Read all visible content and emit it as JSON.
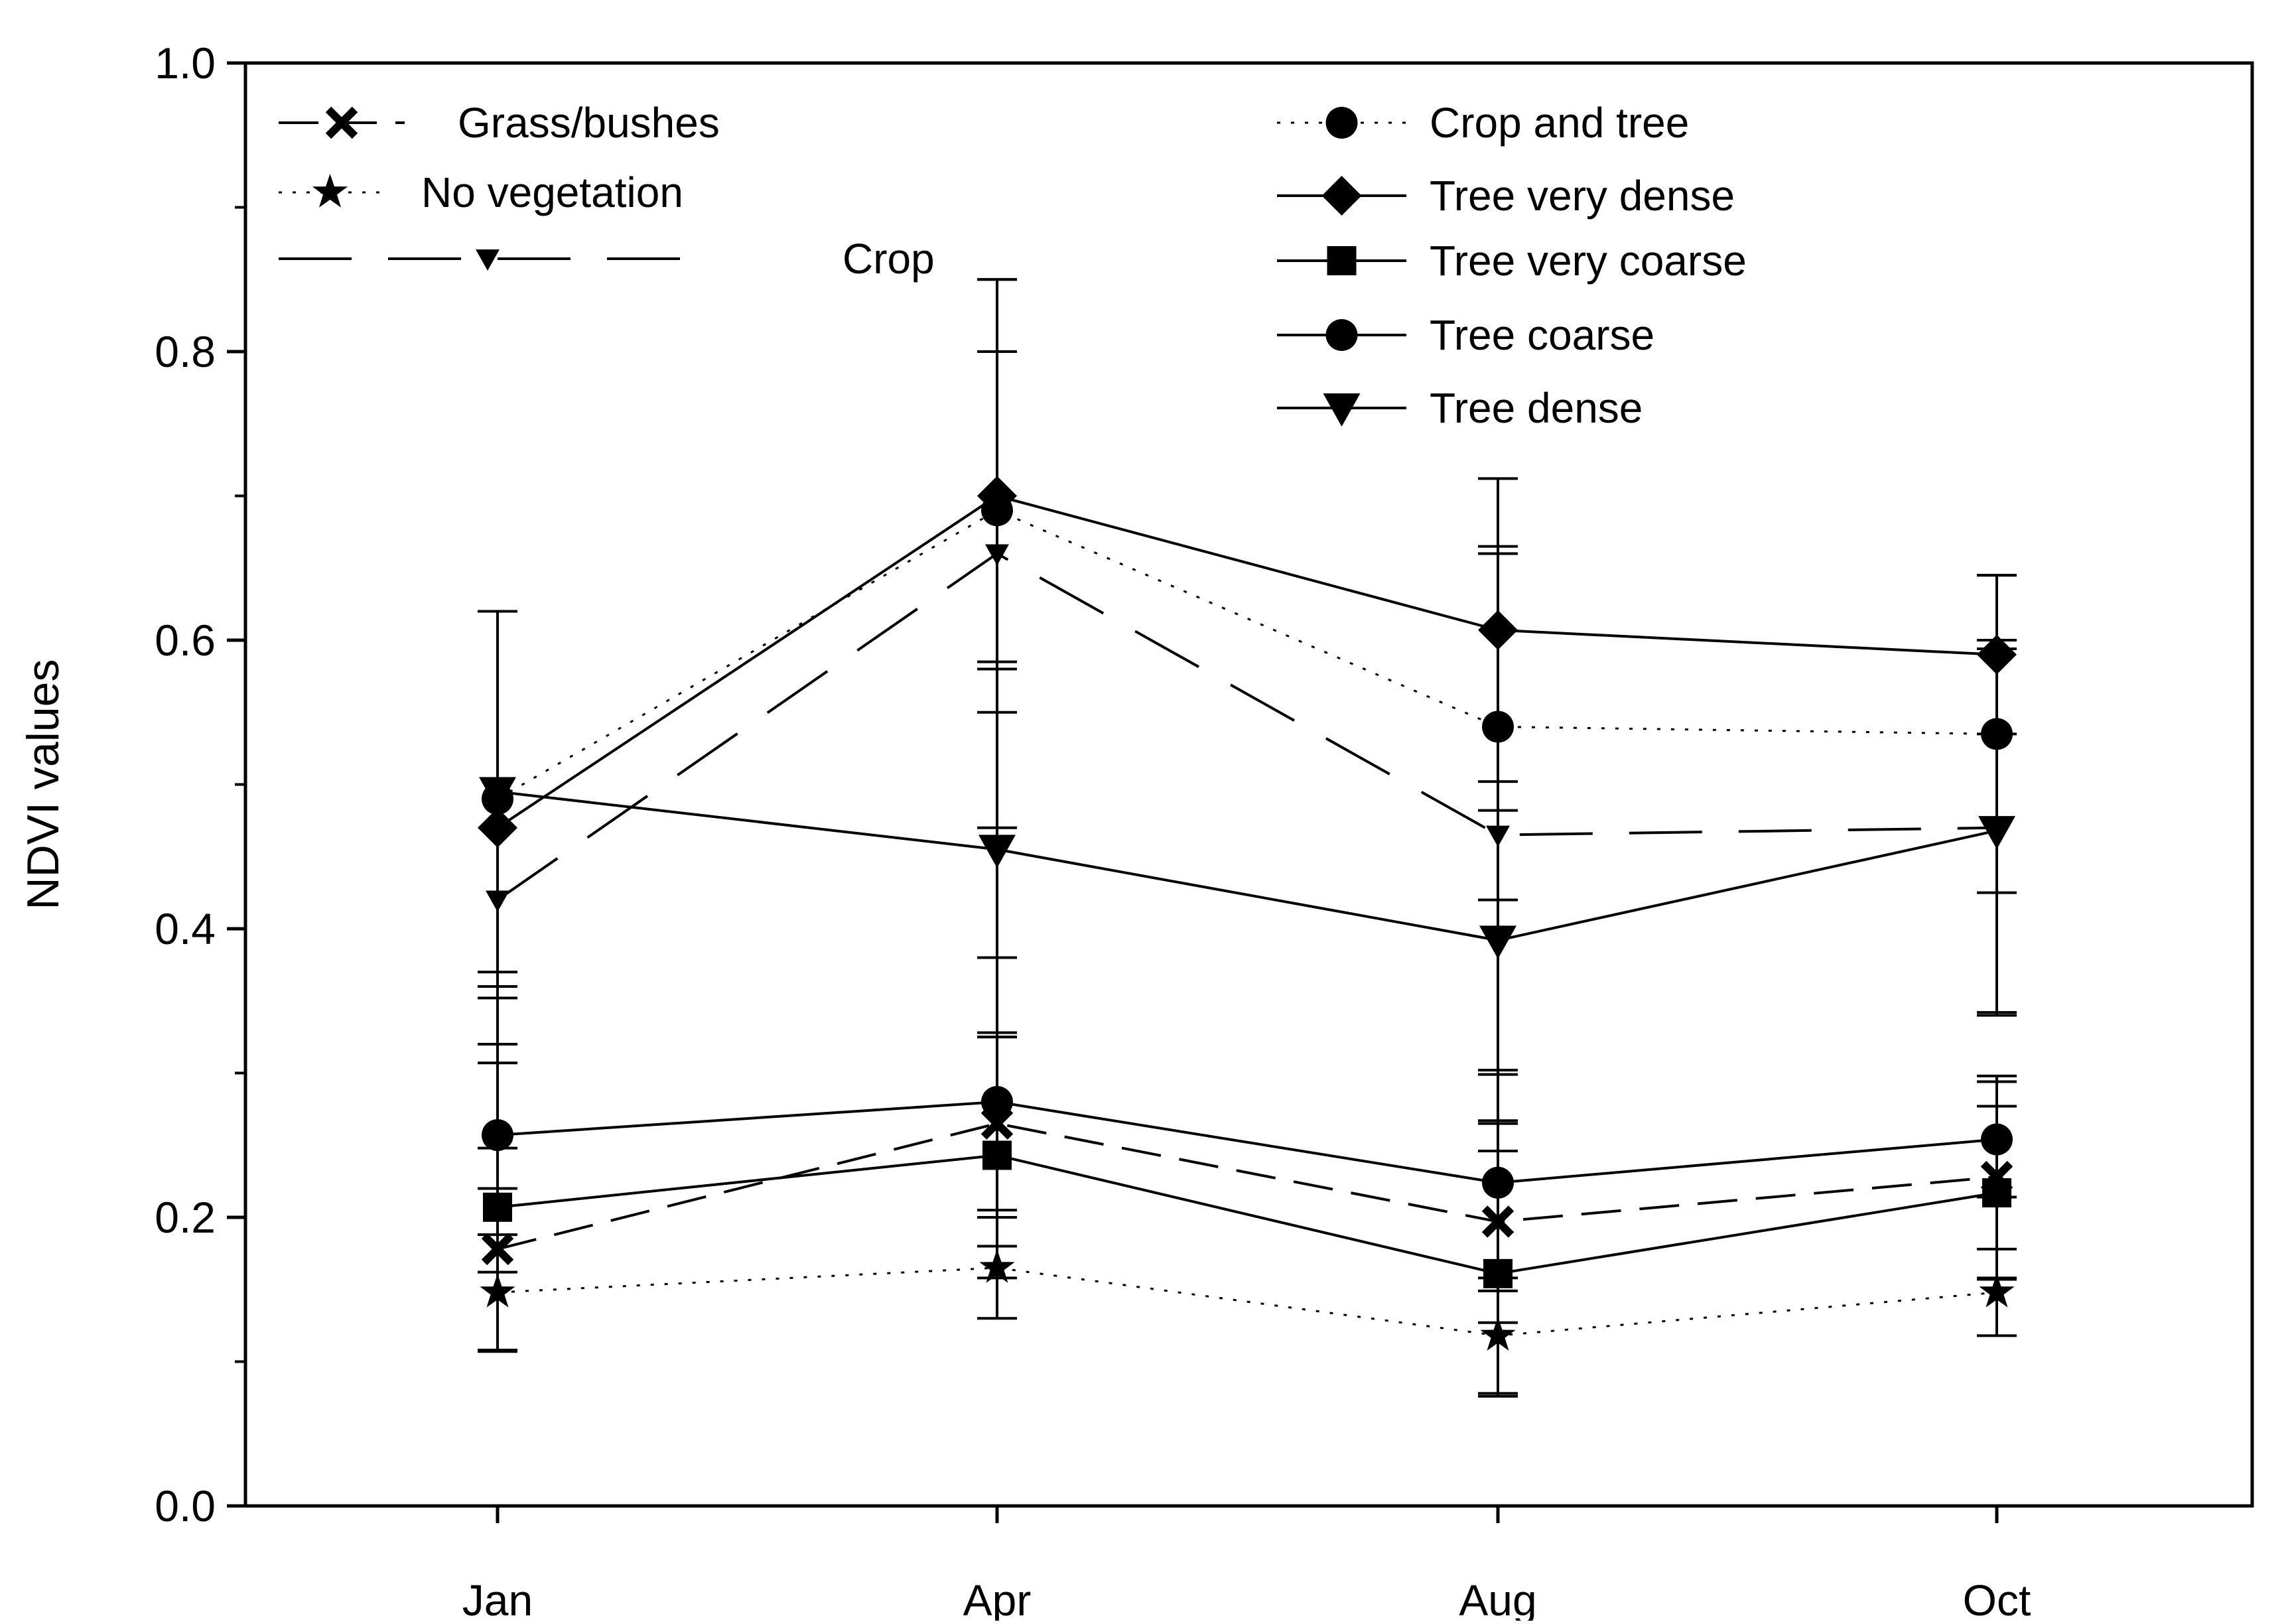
{
  "chart_data": {
    "type": "line",
    "title": "",
    "xlabel": "",
    "ylabel": "NDVI values",
    "categories": [
      "Jan",
      "Apr",
      "Aug",
      "Oct"
    ],
    "ylim": [
      0.0,
      1.0
    ],
    "yticks": [
      "0.0",
      "0.2",
      "0.4",
      "0.6",
      "0.8",
      "1.0"
    ],
    "grid": false,
    "legend_position": "top",
    "series": [
      {
        "name": "Grass/bushes",
        "marker": "x",
        "line": "dash",
        "values": [
          0.178,
          0.265,
          0.197,
          0.228
        ],
        "errors": [
          0.07,
          0.06,
          0.07,
          0.07
        ]
      },
      {
        "name": "No vegetation",
        "marker": "star",
        "line": "dot",
        "values": [
          0.148,
          0.165,
          0.118,
          0.148
        ],
        "errors": [
          0.04,
          0.035,
          0.04,
          0.03
        ]
      },
      {
        "name": "Crop",
        "marker": "triangle-down-small",
        "line": "long-dash",
        "values": [
          0.42,
          0.66,
          0.465,
          0.47
        ],
        "errors": [
          0.2,
          0.19,
          0.2,
          0.13
        ]
      },
      {
        "name": "Crop and tree",
        "marker": "circle",
        "line": "dot",
        "values": [
          0.49,
          0.69,
          0.54,
          0.535
        ],
        "errors": [
          0.13,
          0.11,
          0.12,
          0.11
        ]
      },
      {
        "name": "Tree very dense",
        "marker": "diamond",
        "line": "solid",
        "values": [
          0.47,
          0.7,
          0.607,
          0.59
        ],
        "errors": [
          0.15,
          0.15,
          0.105,
          0.055
        ]
      },
      {
        "name": "Tree very coarse",
        "marker": "square",
        "line": "solid",
        "values": [
          0.207,
          0.243,
          0.161,
          0.217
        ],
        "errors": [
          0.1,
          0.085,
          0.085,
          0.06
        ]
      },
      {
        "name": "Tree coarse",
        "marker": "circle",
        "line": "solid",
        "values": [
          0.257,
          0.28,
          0.224,
          0.254
        ],
        "errors": [
          0.095,
          0.1,
          0.075,
          0.04
        ]
      },
      {
        "name": "Tree dense",
        "marker": "triangle-down",
        "line": "solid",
        "values": [
          0.495,
          0.455,
          0.392,
          0.468
        ],
        "errors": [
          0.125,
          0.13,
          0.09,
          0.126
        ]
      }
    ]
  }
}
